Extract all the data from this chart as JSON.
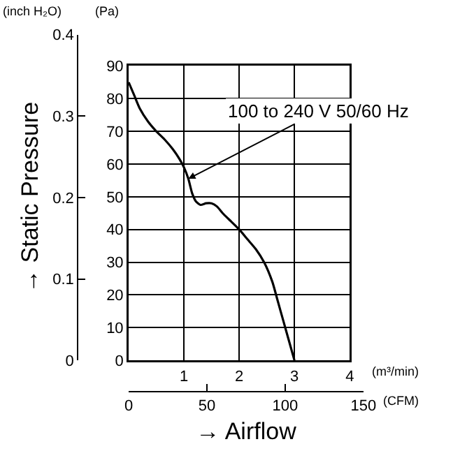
{
  "chart_data": {
    "type": "line",
    "xlabel": "→ Airflow",
    "y2label": "→ Static Pressure",
    "x": [
      0,
      0.1,
      0.2,
      0.35,
      0.5,
      0.65,
      0.8,
      0.92,
      1.0,
      1.08,
      1.15,
      1.22,
      1.3,
      1.4,
      1.5,
      1.6,
      1.7,
      1.85,
      2.0,
      2.15,
      2.3,
      2.45,
      2.6,
      2.7,
      2.8,
      2.9,
      3.0
    ],
    "series": [
      {
        "color": "#000000",
        "values": [
          85,
          81,
          77,
          73,
          70,
          67.5,
          64.5,
          61.5,
          59,
          55.5,
          51,
          48.5,
          47.5,
          48,
          48,
          47,
          45,
          42.5,
          40,
          37,
          34,
          30,
          24,
          18,
          12,
          6,
          0
        ]
      }
    ],
    "xlim": [
      0,
      4
    ],
    "xticks": [
      1,
      2,
      3,
      4
    ],
    "ylim": [
      0,
      90
    ],
    "yticks": [
      0,
      10,
      20,
      30,
      40,
      50,
      60,
      70,
      80,
      90
    ],
    "y2lim": [
      0,
      0.4
    ],
    "y2ticks": [
      0,
      0.1,
      0.2,
      0.3,
      0.4
    ],
    "x2lim": [
      0,
      150
    ],
    "x2ticks": [
      0,
      50,
      100,
      150
    ],
    "grid": true,
    "marker": "none",
    "line_style": "solid",
    "annotations": [
      {
        "text": "100 to 240 V 50/60 Hz",
        "x": 1.08,
        "y": 55.5
      },
      "(inch H₂O)",
      "(Pa)",
      "(m³/min)",
      "(CFM)"
    ]
  }
}
